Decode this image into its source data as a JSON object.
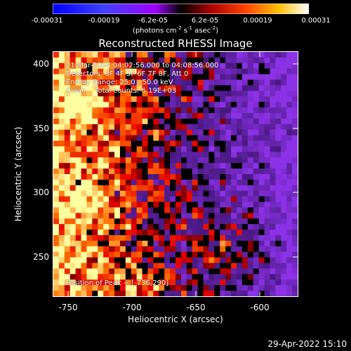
{
  "colorbar": {
    "ticks": [
      "-0.00031",
      "-0.00019",
      "-6.2e-05",
      "6.2e-05",
      "0.00019",
      "0.00031"
    ],
    "units_main": "(photons cm",
    "units_sup1": "-2",
    "units_mid": " s",
    "units_sup2": "-1",
    "units_mid2": " asec",
    "units_sup3": "-2",
    "units_end": ")"
  },
  "title": "Reconstructed RHESSI Image",
  "info": {
    "line1": "21-Mar-2004 04:02:56.000 to 04:08:56.000",
    "line2": "Detectors: 3F 4F 5F 6F 7F 8F, Att 0",
    "line3": "Energy Range: 25.0 - 50.0 keV",
    "line4": "Clean    Total counts: 6.19E+03",
    "peak": "Position of Peak = [-736,290]"
  },
  "axes": {
    "xlabel": "Heliocentric X (arcsec)",
    "ylabel": "Heliocentric Y (arcsec)",
    "xticks": [
      "-750",
      "-700",
      "-650",
      "-600"
    ],
    "yticks": [
      "400",
      "350",
      "300",
      "250"
    ]
  },
  "timestamp": "29-Apr-2022 15:10"
}
